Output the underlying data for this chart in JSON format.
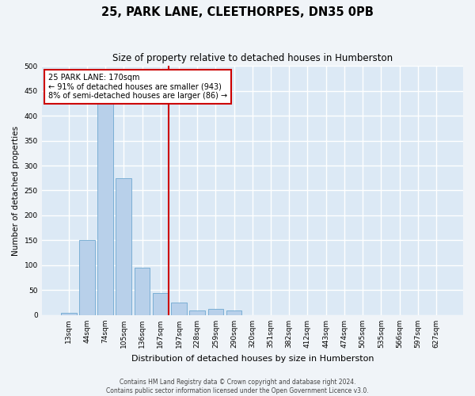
{
  "title": "25, PARK LANE, CLEETHORPES, DN35 0PB",
  "subtitle": "Size of property relative to detached houses in Humberston",
  "xlabel": "Distribution of detached houses by size in Humberston",
  "ylabel": "Number of detached properties",
  "categories": [
    "13sqm",
    "44sqm",
    "74sqm",
    "105sqm",
    "136sqm",
    "167sqm",
    "197sqm",
    "228sqm",
    "259sqm",
    "290sqm",
    "320sqm",
    "351sqm",
    "382sqm",
    "412sqm",
    "443sqm",
    "474sqm",
    "505sqm",
    "535sqm",
    "566sqm",
    "597sqm",
    "627sqm"
  ],
  "bar_values": [
    5,
    150,
    425,
    275,
    95,
    45,
    25,
    10,
    12,
    10,
    0,
    0,
    0,
    0,
    0,
    0,
    0,
    0,
    0,
    0,
    0
  ],
  "bar_color": "#b8d0ea",
  "bar_edge_color": "#6fa8d0",
  "vline_idx": 5,
  "vline_color": "#cc0000",
  "annotation_text": "25 PARK LANE: 170sqm\n← 91% of detached houses are smaller (943)\n8% of semi-detached houses are larger (86) →",
  "annotation_box_facecolor": "#ffffff",
  "annotation_box_edgecolor": "#cc0000",
  "plot_bg_color": "#dce9f5",
  "fig_bg_color": "#f0f4f8",
  "grid_color": "#ffffff",
  "footer_line1": "Contains HM Land Registry data © Crown copyright and database right 2024.",
  "footer_line2": "Contains public sector information licensed under the Open Government Licence v3.0.",
  "ylim": [
    0,
    500
  ],
  "yticks": [
    0,
    50,
    100,
    150,
    200,
    250,
    300,
    350,
    400,
    450,
    500
  ],
  "title_fontsize": 10.5,
  "subtitle_fontsize": 8.5,
  "tick_fontsize": 6.5,
  "ylabel_fontsize": 7.5,
  "xlabel_fontsize": 8,
  "annotation_fontsize": 7,
  "footer_fontsize": 5.5
}
